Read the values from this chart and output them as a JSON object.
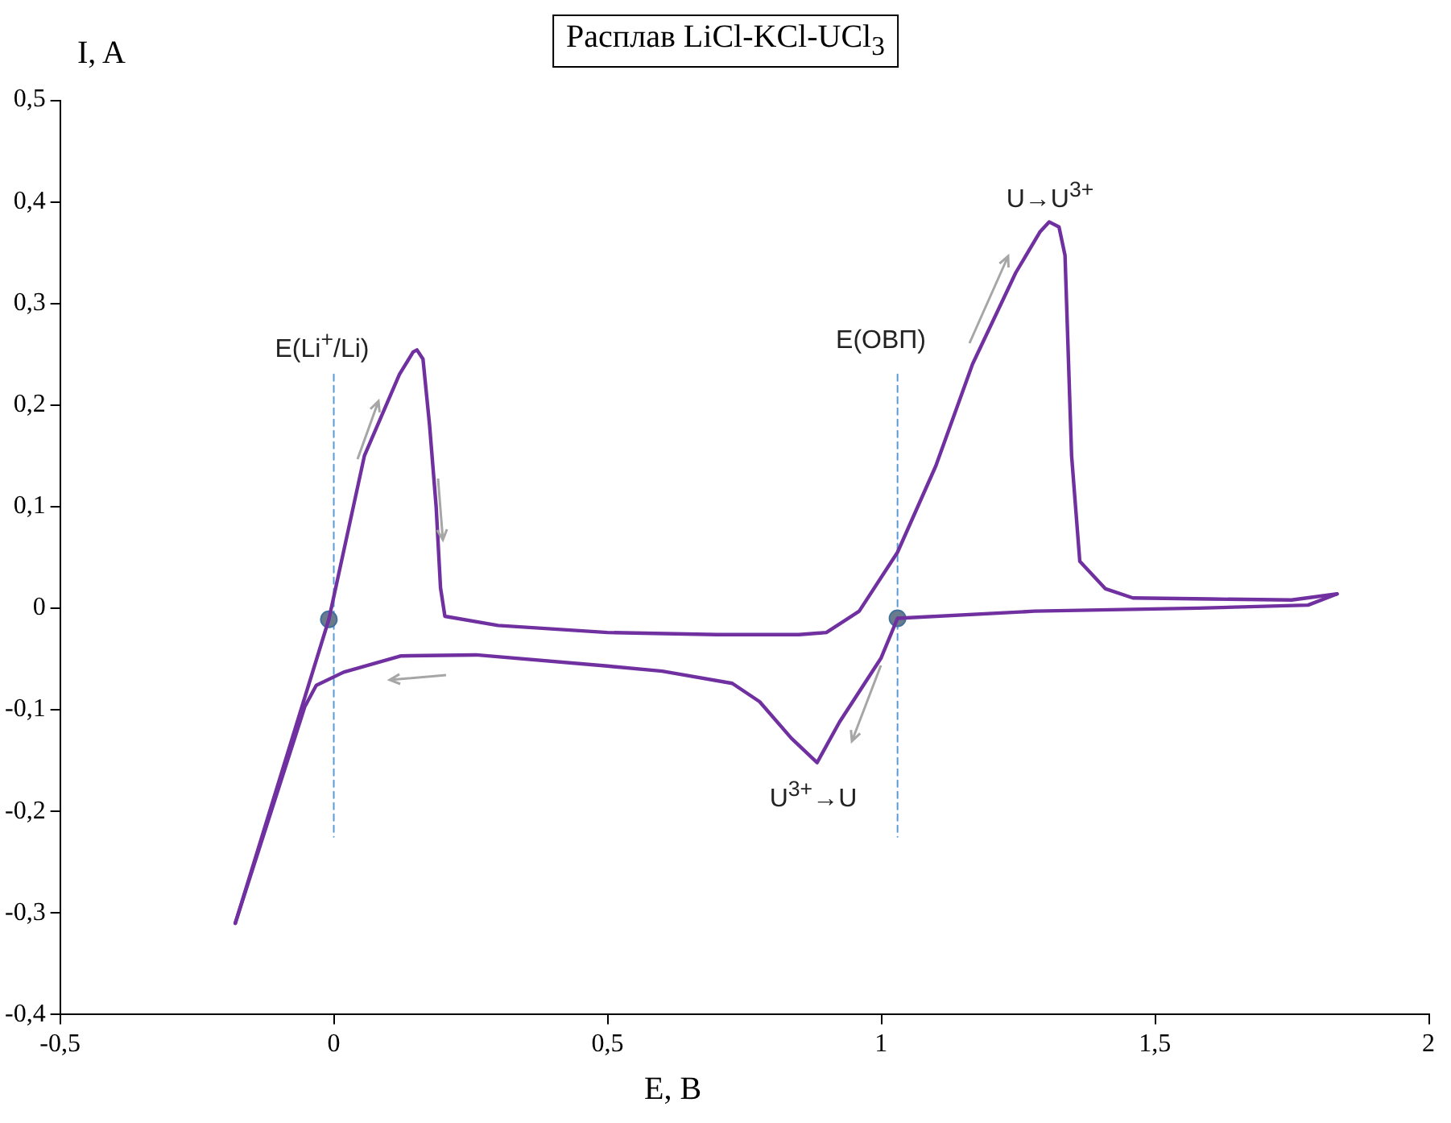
{
  "chart_data": {
    "type": "line",
    "title": "Расплав LiCl-KCl-UCl$_{3}$",
    "xlabel": "E, B",
    "ylabel": "I, A",
    "xlim": [
      -0.5,
      2
    ],
    "xticks": [
      {
        "value": -0.5,
        "label": "-0,5"
      },
      0,
      {
        "value": 0.5,
        "label": "0,5"
      },
      1,
      {
        "value": 1.5,
        "label": "1,5"
      },
      2
    ],
    "ylim": [
      -0.4,
      0.5
    ],
    "yticks": [
      {
        "value": -0.4,
        "label": "-0,4"
      },
      {
        "value": -0.3,
        "label": "-0,3"
      },
      {
        "value": -0.2,
        "label": "-0,2"
      },
      {
        "value": -0.1,
        "label": "-0,1"
      },
      0,
      {
        "value": 0.1,
        "label": "0,1"
      },
      {
        "value": 0.2,
        "label": "0,2"
      },
      {
        "value": 0.3,
        "label": "0,3"
      },
      {
        "value": 0.4,
        "label": "0,4"
      },
      {
        "value": 0.5,
        "label": "0,5"
      }
    ],
    "grid": false,
    "legend": false,
    "marker": "none",
    "line_style": "solid",
    "series": [
      {
        "type": "line",
        "color": "#7030a0",
        "x": [
          -0.18,
          -0.1,
          -0.009,
          0.056,
          0.12,
          0.145,
          0.152,
          0.163,
          0.175,
          0.187,
          0.195,
          0.203,
          0.3,
          0.5,
          0.7,
          0.85,
          0.9,
          0.96,
          1.03,
          1.1,
          1.167,
          1.246,
          1.29,
          1.307,
          1.325,
          1.336,
          1.348,
          1.363,
          1.41,
          1.46,
          1.6,
          1.75,
          1.833
        ],
        "values": [
          -0.31,
          -0.17,
          -0.011,
          0.15,
          0.23,
          0.252,
          0.254,
          0.245,
          0.18,
          0.1,
          0.02,
          -0.008,
          -0.017,
          -0.024,
          -0.026,
          -0.026,
          -0.024,
          -0.003,
          0.055,
          0.14,
          0.24,
          0.33,
          0.37,
          0.38,
          0.375,
          0.347,
          0.15,
          0.046,
          0.019,
          0.01,
          0.009,
          0.008,
          0.014
        ]
      },
      {
        "type": "line",
        "color": "#7030a0",
        "x": [
          1.833,
          1.78,
          1.58,
          1.28,
          1.03,
          1.0,
          0.924,
          0.883,
          0.836,
          0.778,
          0.728,
          0.6,
          0.5,
          0.26,
          0.123,
          0.018,
          -0.032,
          -0.053,
          -0.18
        ],
        "values": [
          0.014,
          0.003,
          0,
          -0.003,
          -0.01,
          -0.049,
          -0.112,
          -0.152,
          -0.128,
          -0.092,
          -0.074,
          -0.062,
          -0.057,
          -0.046,
          -0.047,
          -0.063,
          -0.076,
          -0.097,
          -0.31
        ]
      },
      {
        "type": "scatter",
        "color": "#6a7b8c",
        "marker": "circle",
        "x": [
          -0.009,
          1.03
        ],
        "values": [
          -0.011,
          -0.01
        ]
      },
      {
        "type": "line",
        "color": "#5b9bd5",
        "line_style": "dashed",
        "x": [
          0,
          0
        ],
        "values": [
          0.23,
          -0.225
        ]
      },
      {
        "type": "line",
        "color": "#5b9bd5",
        "line_style": "dashed",
        "x": [
          1.03,
          1.03
        ],
        "values": [
          0.23,
          -0.225
        ]
      }
    ],
    "annotations": [
      "E(Li$^{+}$/Li)",
      "E(ОВП)",
      "U→U$^{3+}$",
      "U$^{3+}$→U"
    ]
  }
}
